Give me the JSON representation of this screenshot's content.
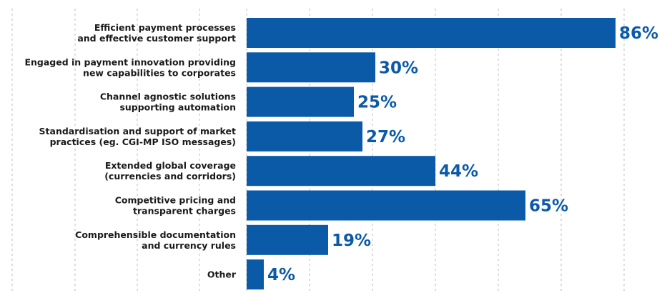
{
  "chart_data": {
    "type": "bar",
    "orientation": "horizontal",
    "title": "",
    "xlabel": "",
    "ylabel": "",
    "xlim": [
      0,
      100
    ],
    "grid": true,
    "legend": "none",
    "bar_color": "#0a5aa8",
    "label_color": "#0a5aa8",
    "categories": [
      [
        "Efficient payment processes",
        "and effective customer support"
      ],
      [
        "Engaged in payment innovation providing",
        "new capabilities to corporates"
      ],
      [
        "Channel agnostic solutions",
        "supporting automation"
      ],
      [
        "Standardisation and support of market",
        "practices (eg. CGI-MP ISO messages)"
      ],
      [
        "Extended global coverage",
        "(currencies and corridors)"
      ],
      [
        "Competitive pricing and",
        "transparent charges"
      ],
      [
        "Comprehensible documentation",
        "and currency rules"
      ],
      [
        "Other"
      ]
    ],
    "values": [
      86,
      30,
      25,
      27,
      44,
      65,
      19,
      4
    ],
    "value_labels": [
      "86%",
      "30%",
      "25%",
      "27%",
      "44%",
      "65%",
      "19%",
      "4%"
    ]
  }
}
